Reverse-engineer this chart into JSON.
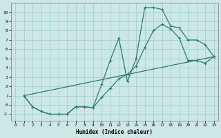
{
  "xlabel": "Humidex (Indice chaleur)",
  "background_color": "#cce8e4",
  "grid_color": "#aad4cc",
  "line_color": "#2d7a6e",
  "xlim": [
    -0.5,
    23.5
  ],
  "ylim": [
    -1.7,
    11.0
  ],
  "yticks": [
    -1,
    0,
    1,
    2,
    3,
    4,
    5,
    6,
    7,
    8,
    9,
    10
  ],
  "xticks": [
    0,
    1,
    2,
    3,
    4,
    5,
    6,
    7,
    8,
    9,
    10,
    11,
    12,
    13,
    14,
    15,
    16,
    17,
    18,
    19,
    20,
    21,
    22,
    23
  ],
  "line1_x": [
    1,
    2,
    3,
    4,
    5,
    6,
    7,
    8,
    9,
    10,
    11,
    12,
    13,
    14,
    15,
    16,
    17,
    18,
    19,
    20,
    21,
    22,
    23
  ],
  "line1_y": [
    1.0,
    -0.2,
    -0.7,
    -1.0,
    -1.0,
    -1.0,
    -0.2,
    -0.2,
    -0.3,
    2.2,
    4.8,
    7.2,
    2.5,
    5.0,
    10.5,
    10.5,
    10.3,
    8.5,
    8.3,
    7.0,
    7.0,
    6.5,
    5.2
  ],
  "line2_x": [
    1,
    2,
    3,
    4,
    5,
    6,
    7,
    8,
    9,
    10,
    11,
    12,
    13,
    14,
    15,
    16,
    17,
    18,
    19,
    20,
    21,
    22,
    23
  ],
  "line2_y": [
    1.0,
    -0.2,
    -0.7,
    -1.0,
    -1.0,
    -1.0,
    -0.2,
    -0.2,
    -0.3,
    0.8,
    1.8,
    2.8,
    3.3,
    4.2,
    6.2,
    8.0,
    8.7,
    8.2,
    7.2,
    4.8,
    4.8,
    4.5,
    5.2
  ],
  "line3_x": [
    1,
    23
  ],
  "line3_y": [
    1.0,
    5.2
  ]
}
